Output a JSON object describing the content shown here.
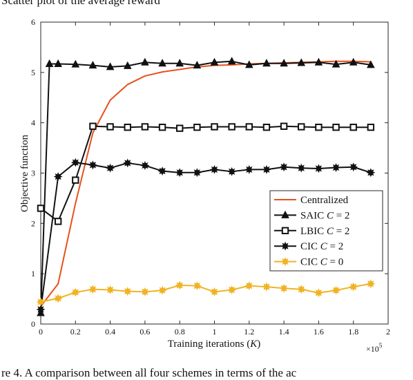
{
  "captions": {
    "top": "Scatter plot of the average reward",
    "bottom": "re 4.   A comparison between all four schemes in terms of the ac"
  },
  "chart_data": {
    "type": "line",
    "title": "",
    "xlabel": "Training iterations (K)",
    "xlabel_parts": {
      "text": "Training iterations (",
      "var": "K",
      "close": ")"
    },
    "ylabel": "Objective function",
    "x_exponent": "×10",
    "x_exponent_power": "5",
    "xlim": [
      0,
      2
    ],
    "ylim": [
      0,
      6
    ],
    "xticks": [
      "0",
      "0.2",
      "0.4",
      "0.6",
      "0.8",
      "1",
      "1.2",
      "1.4",
      "1.6",
      "1.8",
      "2"
    ],
    "yticks": [
      "0",
      "1",
      "2",
      "3",
      "4",
      "5",
      "6"
    ],
    "grid": false,
    "legend_position": "lower-right",
    "series": [
      {
        "name": "Centralized",
        "legend_text": "Centralized",
        "legend_var": "",
        "legend_value": "",
        "color": "#e8501a",
        "marker": "none",
        "x": [
          0,
          0.1,
          0.2,
          0.3,
          0.4,
          0.5,
          0.6,
          0.7,
          0.8,
          0.9,
          1.0,
          1.1,
          1.2,
          1.3,
          1.4,
          1.5,
          1.6,
          1.7,
          1.8,
          1.9
        ],
        "values": [
          0.35,
          0.8,
          2.4,
          3.8,
          4.45,
          4.76,
          4.93,
          5.01,
          5.06,
          5.11,
          5.14,
          5.15,
          5.17,
          5.18,
          5.19,
          5.2,
          5.21,
          5.22,
          5.22,
          5.21
        ]
      },
      {
        "name": "SAIC C = 2",
        "legend_text": "SAIC ",
        "legend_var": "C",
        "legend_value": " = 2",
        "color": "#111111",
        "marker": "triangle",
        "x": [
          0,
          0.05,
          0.1,
          0.2,
          0.3,
          0.4,
          0.5,
          0.6,
          0.7,
          0.8,
          0.9,
          1.0,
          1.1,
          1.2,
          1.3,
          1.4,
          1.5,
          1.6,
          1.7,
          1.8,
          1.9
        ],
        "values": [
          0.22,
          5.17,
          5.17,
          5.16,
          5.14,
          5.11,
          5.13,
          5.2,
          5.18,
          5.18,
          5.14,
          5.2,
          5.22,
          5.15,
          5.18,
          5.18,
          5.19,
          5.2,
          5.16,
          5.2,
          5.15
        ]
      },
      {
        "name": "LBIC C = 2",
        "legend_text": "LBIC ",
        "legend_var": "C",
        "legend_value": " = 2",
        "color": "#111111",
        "marker": "square",
        "x": [
          0,
          0.1,
          0.2,
          0.3,
          0.4,
          0.5,
          0.6,
          0.7,
          0.8,
          0.9,
          1.0,
          1.1,
          1.2,
          1.3,
          1.4,
          1.5,
          1.6,
          1.7,
          1.8,
          1.9
        ],
        "values": [
          2.3,
          2.04,
          2.86,
          3.93,
          3.92,
          3.91,
          3.92,
          3.91,
          3.89,
          3.91,
          3.92,
          3.92,
          3.92,
          3.91,
          3.93,
          3.92,
          3.91,
          3.91,
          3.91,
          3.91
        ]
      },
      {
        "name": "CIC C = 2",
        "legend_text": "CIC ",
        "legend_var": "C",
        "legend_value": " = 2",
        "color": "#111111",
        "marker": "star",
        "x": [
          0,
          0.1,
          0.2,
          0.3,
          0.4,
          0.5,
          0.6,
          0.7,
          0.8,
          0.9,
          1.0,
          1.1,
          1.2,
          1.3,
          1.4,
          1.5,
          1.6,
          1.7,
          1.8,
          1.9
        ],
        "values": [
          0.29,
          2.93,
          3.21,
          3.16,
          3.1,
          3.2,
          3.15,
          3.04,
          3.01,
          3.01,
          3.07,
          3.03,
          3.07,
          3.07,
          3.12,
          3.1,
          3.09,
          3.11,
          3.12,
          3.01
        ]
      },
      {
        "name": "CIC C = 0",
        "legend_text": "CIC ",
        "legend_var": "C",
        "legend_value": " = 0",
        "color": "#f0b323",
        "marker": "star",
        "x": [
          0,
          0.1,
          0.2,
          0.3,
          0.4,
          0.5,
          0.6,
          0.7,
          0.8,
          0.9,
          1.0,
          1.1,
          1.2,
          1.3,
          1.4,
          1.5,
          1.6,
          1.7,
          1.8,
          1.9
        ],
        "values": [
          0.44,
          0.51,
          0.63,
          0.69,
          0.68,
          0.65,
          0.64,
          0.67,
          0.77,
          0.76,
          0.64,
          0.68,
          0.76,
          0.74,
          0.71,
          0.69,
          0.62,
          0.67,
          0.74,
          0.8
        ]
      }
    ]
  }
}
